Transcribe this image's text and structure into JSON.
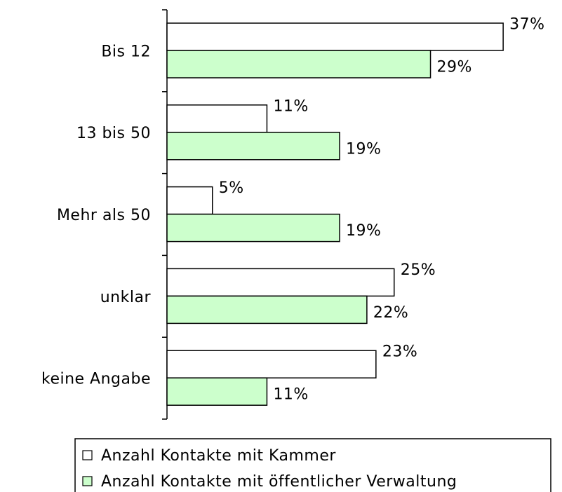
{
  "chart_data": {
    "type": "bar",
    "orientation": "horizontal",
    "categories": [
      "Bis 12",
      "13 bis 50",
      "Mehr als 50",
      "unklar",
      "keine Angabe"
    ],
    "series": [
      {
        "name": "Anzahl Kontakte mit Kammer",
        "color": "#ffffff",
        "values": [
          37,
          11,
          5,
          25,
          23
        ],
        "value_labels": [
          "37%",
          "11%",
          "5%",
          "25%",
          "23%"
        ]
      },
      {
        "name": "Anzahl Kontakte mit öffentlicher Verwaltung",
        "color": "#ccffcc",
        "values": [
          29,
          19,
          19,
          22,
          11
        ],
        "value_labels": [
          "29%",
          "19%",
          "19%",
          "22%",
          "11%"
        ]
      }
    ],
    "xlim": [
      0,
      40
    ],
    "legend": "bottom"
  }
}
